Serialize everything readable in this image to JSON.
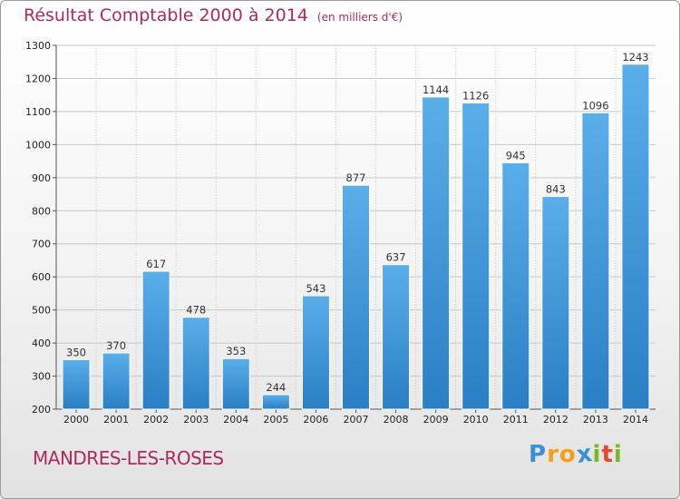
{
  "header": {
    "title": "Résultat Comptable 2000 à 2014",
    "subtitle": "(en milliers d'€)"
  },
  "footer": {
    "commune": "MANDRES-LES-ROSES",
    "logo": {
      "letters": [
        "P",
        "r",
        "o",
        "x",
        "i",
        "t",
        "i"
      ],
      "colors": [
        "#3b8fd6",
        "#f2a01c",
        "#f2a01c",
        "#3b8fd6",
        "#7ab828",
        "#e8462f",
        "#7ab828"
      ]
    }
  },
  "colors": {
    "title": "#b0295c",
    "bar_top": "#5aaeea",
    "bar_bottom": "#2a7fc4",
    "grid": "#c8c8c8"
  },
  "chart_data": {
    "type": "bar",
    "title": "Résultat Comptable 2000 à 2014",
    "xlabel": "",
    "ylabel": "",
    "ylim": [
      200,
      1300
    ],
    "yticks": [
      200,
      300,
      400,
      500,
      600,
      700,
      800,
      900,
      1000,
      1100,
      1200,
      1300
    ],
    "grid": true,
    "categories": [
      "2000",
      "2001",
      "2002",
      "2003",
      "2004",
      "2005",
      "2006",
      "2007",
      "2008",
      "2009",
      "2010",
      "2011",
      "2012",
      "2013",
      "2014"
    ],
    "values": [
      350,
      370,
      617,
      478,
      353,
      244,
      543,
      877,
      637,
      1144,
      1126,
      945,
      843,
      1096,
      1243
    ]
  }
}
